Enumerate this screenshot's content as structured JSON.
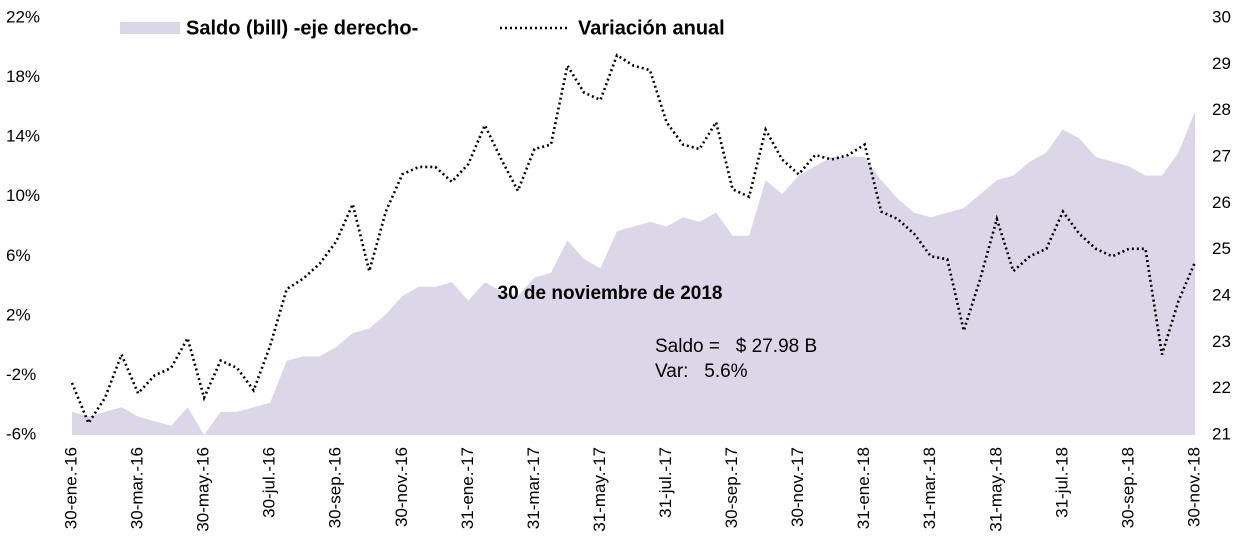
{
  "chart_data": {
    "type": "line",
    "categories": [
      "30-ene.-16",
      null,
      null,
      null,
      "30-mar.-16",
      null,
      null,
      null,
      "30-may.-16",
      null,
      null,
      null,
      "30-jul.-16",
      null,
      null,
      null,
      "30-sep.-16",
      null,
      null,
      null,
      "30-nov.-16",
      null,
      null,
      null,
      "31-ene.-17",
      null,
      null,
      null,
      "31-mar.-17",
      null,
      null,
      null,
      "31-may.-17",
      null,
      null,
      null,
      "31-jul.-17",
      null,
      null,
      null,
      "30-sep.-17",
      null,
      null,
      null,
      "30-nov.-17",
      null,
      null,
      null,
      "31-ene.-18",
      null,
      null,
      null,
      "31-mar.-18",
      null,
      null,
      null,
      "31-may.-18",
      null,
      null,
      null,
      "31-jul.-18",
      null,
      null,
      null,
      "30-sep.-18",
      null,
      null,
      null,
      "30-nov.-18"
    ],
    "series": [
      {
        "name": "Saldo (bill) -eje derecho-",
        "type": "area",
        "axis": "y2",
        "color": "#dcd7e8",
        "values": [
          21.5,
          21.4,
          21.5,
          21.6,
          21.4,
          21.3,
          21.2,
          21.6,
          21.0,
          21.5,
          21.5,
          21.6,
          21.7,
          22.6,
          22.7,
          22.7,
          22.9,
          23.2,
          23.3,
          23.6,
          24.0,
          24.2,
          24.2,
          24.3,
          23.9,
          24.3,
          24.1,
          24.0,
          24.4,
          24.5,
          25.2,
          24.8,
          24.6,
          25.4,
          25.5,
          25.6,
          25.5,
          25.7,
          25.6,
          25.8,
          25.3,
          25.3,
          26.5,
          26.2,
          26.6,
          26.8,
          27.0,
          27.0,
          27.0,
          26.5,
          26.1,
          25.8,
          25.7,
          25.8,
          25.9,
          26.2,
          26.5,
          26.6,
          26.9,
          27.1,
          27.6,
          27.4,
          27.0,
          26.9,
          26.8,
          26.6,
          26.6,
          27.1,
          27.98
        ]
      },
      {
        "name": "Variación anual",
        "type": "line",
        "color": "#000000",
        "values": [
          -2.5,
          -5.2,
          -3.5,
          -0.6,
          -3.2,
          -2,
          -1.5,
          0.5,
          -3.5,
          -1,
          -1.5,
          -3,
          0,
          3.8,
          4.5,
          5.5,
          7,
          9.5,
          5,
          9,
          11.5,
          12,
          12,
          11,
          12.2,
          14.8,
          12.5,
          10.4,
          13.2,
          13.5,
          18.8,
          17,
          16.5,
          19.5,
          18.8,
          18.5,
          15,
          13.5,
          13.2,
          15,
          10.5,
          10,
          14.5,
          12.5,
          11.5,
          12.8,
          12.5,
          12.8,
          13.5,
          9,
          8.5,
          7.5,
          6,
          5.8,
          1,
          4.5,
          8.5,
          5,
          6,
          6.5,
          9,
          7.5,
          6.5,
          6,
          6.5,
          6.5,
          -0.6,
          3,
          5.6
        ]
      }
    ],
    "ylim": [
      -6,
      22
    ],
    "yticks": [
      {
        "value": -6,
        "label": "-6%"
      },
      {
        "value": -2,
        "label": "-2%"
      },
      {
        "value": 2,
        "label": "2%"
      },
      {
        "value": 6,
        "label": "6%"
      },
      {
        "value": 10,
        "label": "10%"
      },
      {
        "value": 14,
        "label": "14%"
      },
      {
        "value": 18,
        "label": "18%"
      },
      {
        "value": 22,
        "label": "22%"
      }
    ],
    "y2lim": [
      21,
      30
    ],
    "y2ticks": [
      21,
      22,
      23,
      24,
      25,
      26,
      27,
      28,
      29,
      30
    ],
    "annotations": [
      "30 de noviembre de 2018",
      "Saldo =   $ 27.98 B",
      "Var:   5.6%"
    ],
    "legend": "top"
  }
}
